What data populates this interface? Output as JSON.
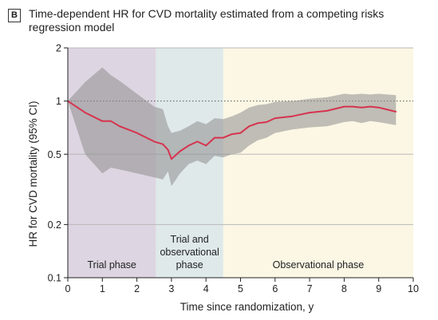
{
  "panel": {
    "label": "B",
    "title": "Time-dependent HR for CVD mortality estimated from a competing risks regression model"
  },
  "chart_data": {
    "type": "line",
    "title": "Time-dependent HR for CVD mortality estimated from a competing risks regression model",
    "xlabel": "Time since randomization, y",
    "ylabel": "HR for CVD mortality (95% CI)",
    "xlim": [
      0,
      10
    ],
    "ylim": [
      0.1,
      2
    ],
    "yscale": "log",
    "x_ticks": [
      0,
      1,
      2,
      3,
      4,
      5,
      6,
      7,
      8,
      9,
      10
    ],
    "y_ticks": [
      {
        "value": 0.1,
        "label": "0.1"
      },
      {
        "value": 0.2,
        "label": "0.2"
      },
      {
        "value": 0.5,
        "label": "0.5"
      },
      {
        "value": 1,
        "label": "1"
      },
      {
        "value": 2,
        "label": "2"
      }
    ],
    "reference_line": 1,
    "phases": [
      {
        "label": "Trial phase",
        "start": 0,
        "end": 2.55,
        "color": "#ddd5e1"
      },
      {
        "label": "Trial and\nobservational\nphase",
        "start": 2.55,
        "end": 4.5,
        "color": "#dfe9ea"
      },
      {
        "label": "Observational phase",
        "start": 4.5,
        "end": 10,
        "color": "#fbf7e4"
      }
    ],
    "series": [
      {
        "color": "#d6334e",
        "x": [
          0,
          0.5,
          1,
          1.25,
          1.5,
          2,
          2.5,
          2.75,
          2.9,
          3.0,
          3.25,
          3.5,
          3.75,
          4.0,
          4.25,
          4.5,
          4.75,
          5.0,
          5.25,
          5.5,
          5.75,
          6.0,
          6.5,
          7.0,
          7.5,
          8.0,
          8.25,
          8.5,
          8.75,
          9.0,
          9.5
        ],
        "y": [
          1.0,
          0.86,
          0.77,
          0.77,
          0.72,
          0.66,
          0.59,
          0.57,
          0.53,
          0.47,
          0.52,
          0.56,
          0.59,
          0.56,
          0.62,
          0.62,
          0.65,
          0.66,
          0.72,
          0.75,
          0.76,
          0.8,
          0.82,
          0.86,
          0.88,
          0.93,
          0.93,
          0.92,
          0.93,
          0.92,
          0.87
        ],
        "lower": [
          1.0,
          0.5,
          0.39,
          0.42,
          0.41,
          0.39,
          0.37,
          0.36,
          0.4,
          0.33,
          0.39,
          0.44,
          0.46,
          0.44,
          0.49,
          0.48,
          0.5,
          0.51,
          0.56,
          0.6,
          0.62,
          0.66,
          0.69,
          0.71,
          0.72,
          0.76,
          0.77,
          0.75,
          0.77,
          0.76,
          0.73
        ],
        "upper": [
          1.0,
          1.28,
          1.55,
          1.4,
          1.3,
          1.1,
          0.93,
          0.9,
          0.72,
          0.66,
          0.68,
          0.72,
          0.77,
          0.74,
          0.8,
          0.79,
          0.82,
          0.86,
          0.92,
          0.95,
          0.96,
          0.99,
          1.0,
          1.03,
          1.05,
          1.1,
          1.09,
          1.1,
          1.09,
          1.1,
          1.08
        ]
      }
    ]
  }
}
